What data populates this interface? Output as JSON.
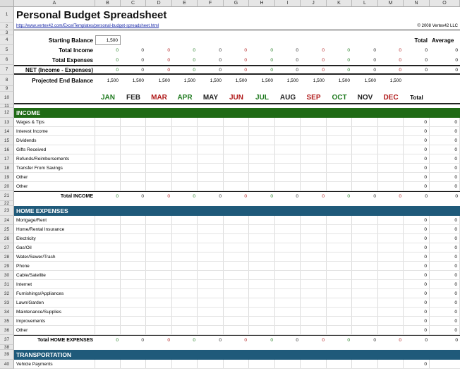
{
  "columns": [
    "A",
    "B",
    "C",
    "D",
    "E",
    "F",
    "G",
    "H",
    "I",
    "J",
    "K",
    "L",
    "M",
    "N",
    "O"
  ],
  "title": "Personal Budget Spreadsheet",
  "link_text": "http://www.vertex42.com/ExcelTemplates/personal-budget-spreadsheet.html",
  "copyright": "© 2008 Vertex42 LLC",
  "summary": {
    "starting_balance_label": "Starting Balance",
    "starting_balance_value": "1,500",
    "total_income_label": "Total Income",
    "total_expenses_label": "Total Expenses",
    "net_label": "NET (Income - Expenses)",
    "projected_label": "Projected End Balance",
    "total_header": "Total",
    "average_header": "Average"
  },
  "months": [
    {
      "label": "JAN",
      "color": "#1f7a1f"
    },
    {
      "label": "FEB",
      "color": "#222222"
    },
    {
      "label": "MAR",
      "color": "#b01818"
    },
    {
      "label": "APR",
      "color": "#1f7a1f"
    },
    {
      "label": "MAY",
      "color": "#222222"
    },
    {
      "label": "JUN",
      "color": "#b01818"
    },
    {
      "label": "JUL",
      "color": "#1f7a1f"
    },
    {
      "label": "AUG",
      "color": "#222222"
    },
    {
      "label": "SEP",
      "color": "#b01818"
    },
    {
      "label": "OCT",
      "color": "#1f7a1f"
    },
    {
      "label": "NOV",
      "color": "#222222"
    },
    {
      "label": "DEC",
      "color": "#b01818"
    }
  ],
  "total_label": "Total",
  "zero": "0",
  "projected_value": "1,500",
  "income": {
    "header": "INCOME",
    "items": [
      "Wages & Tips",
      "Interest Income",
      "Dividends",
      "Gifts Received",
      "Refunds/Reimbursements",
      "Transfer From Savings",
      "Other",
      "Other"
    ],
    "total_label": "Total INCOME"
  },
  "home": {
    "header": "HOME EXPENSES",
    "items": [
      "Mortgage/Rent",
      "Home/Rental Insurance",
      "Electricity",
      "Gas/Oil",
      "Water/Sewer/Trash",
      "Phone",
      "Cable/Satellite",
      "Internet",
      "Furnishings/Appliances",
      "Lawn/Garden",
      "Maintenance/Supplies",
      "Improvements",
      "Other"
    ],
    "total_label": "Total HOME EXPENSES"
  },
  "transportation": {
    "header": "TRANSPORTATION",
    "items": [
      "Vehicle Payments"
    ]
  },
  "row_numbers": {
    "r1": "1",
    "r2": "2",
    "r3": "3",
    "r4": "4",
    "r5": "5",
    "r6": "6",
    "r7": "7",
    "r8": "8",
    "r9": "9",
    "r10": "10",
    "r11": "11",
    "r12": "12",
    "income_rows": [
      "13",
      "14",
      "15",
      "16",
      "17",
      "18",
      "19",
      "20"
    ],
    "r21": "21",
    "r22": "22",
    "r23": "23",
    "home_rows": [
      "24",
      "25",
      "26",
      "27",
      "28",
      "29",
      "30",
      "31",
      "32",
      "33",
      "34",
      "35",
      "36"
    ],
    "r37": "37",
    "r38": "38",
    "r39": "39",
    "r40": "40"
  }
}
